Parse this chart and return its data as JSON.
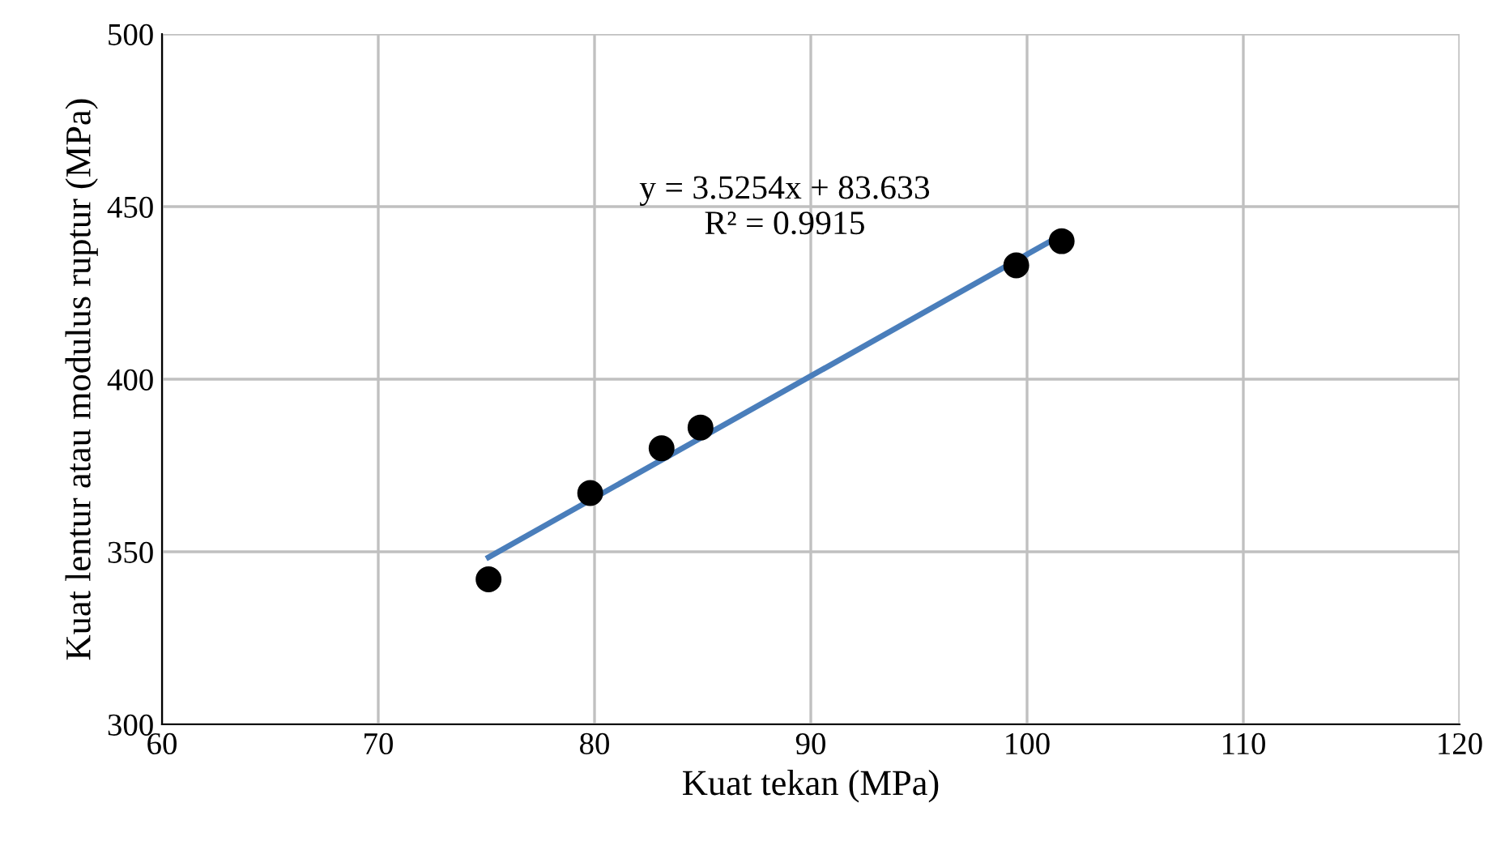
{
  "chart_data": {
    "type": "scatter",
    "xlabel": "Kuat tekan (MPa)",
    "ylabel": "Kuat lentur atau modulus ruptur (MPa)",
    "series": [
      {
        "color": "#000000",
        "marker": "circle",
        "x": [
          75.1,
          79.8,
          83.1,
          84.9,
          99.5,
          101.6
        ],
        "values": [
          342,
          367,
          380,
          386,
          433,
          440
        ]
      },
      {
        "type": "line",
        "color": "#4a7ebb",
        "line_style": "solid",
        "marker": "none",
        "x": [
          75.1,
          101.6
        ],
        "values": [
          348.4,
          441.8
        ]
      }
    ],
    "annotations": [
      "y = 3.5254x + 83.633\nR² = 0.9915"
    ],
    "xlim": [
      60,
      120
    ],
    "xticks": [
      60,
      70,
      80,
      90,
      100,
      110,
      120
    ],
    "ylim": [
      300,
      500
    ],
    "yticks": [
      300,
      350,
      400,
      450,
      500
    ],
    "grid": true,
    "legend": false
  }
}
